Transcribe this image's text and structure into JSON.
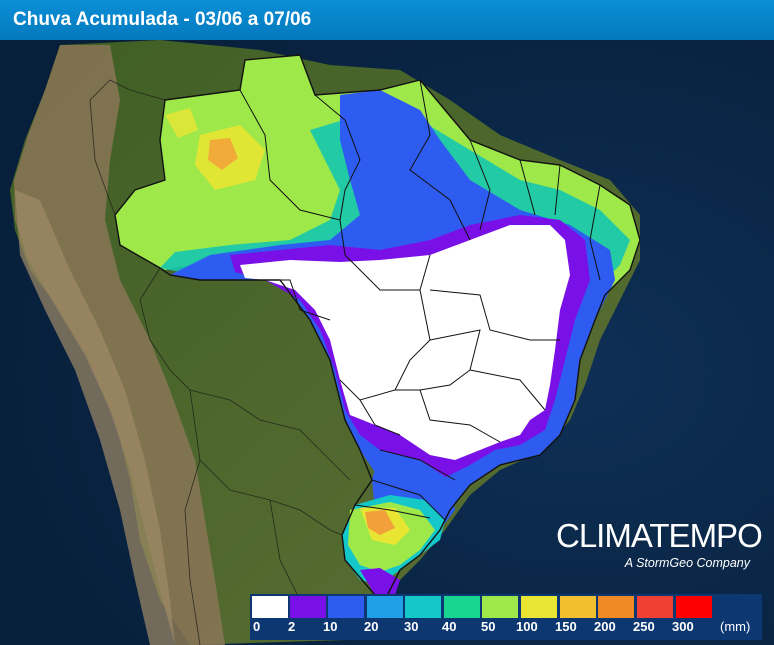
{
  "header": {
    "title": "Chuva Acumulada - 03/06 a 07/06"
  },
  "brand": {
    "name": "CLIMATEMPO",
    "tagline": "A StormGeo Company"
  },
  "legend": {
    "unit": "(mm)",
    "ticks": [
      "0",
      "2",
      "10",
      "20",
      "30",
      "40",
      "50",
      "100",
      "150",
      "200",
      "250",
      "300"
    ],
    "colors": [
      "#ffffff",
      "#7a10e8",
      "#2f5cf0",
      "#1fa0e6",
      "#14c7c9",
      "#18d68f",
      "#9ee84a",
      "#e8e633",
      "#f2c02e",
      "#f08a22",
      "#f04036",
      "#ff0000"
    ]
  },
  "map": {
    "region": "Brasil",
    "colors": {
      "ocean": "#0b2a4a",
      "land": "#4c6b2c",
      "andes": "#8a7656",
      "border": "#111111"
    }
  }
}
